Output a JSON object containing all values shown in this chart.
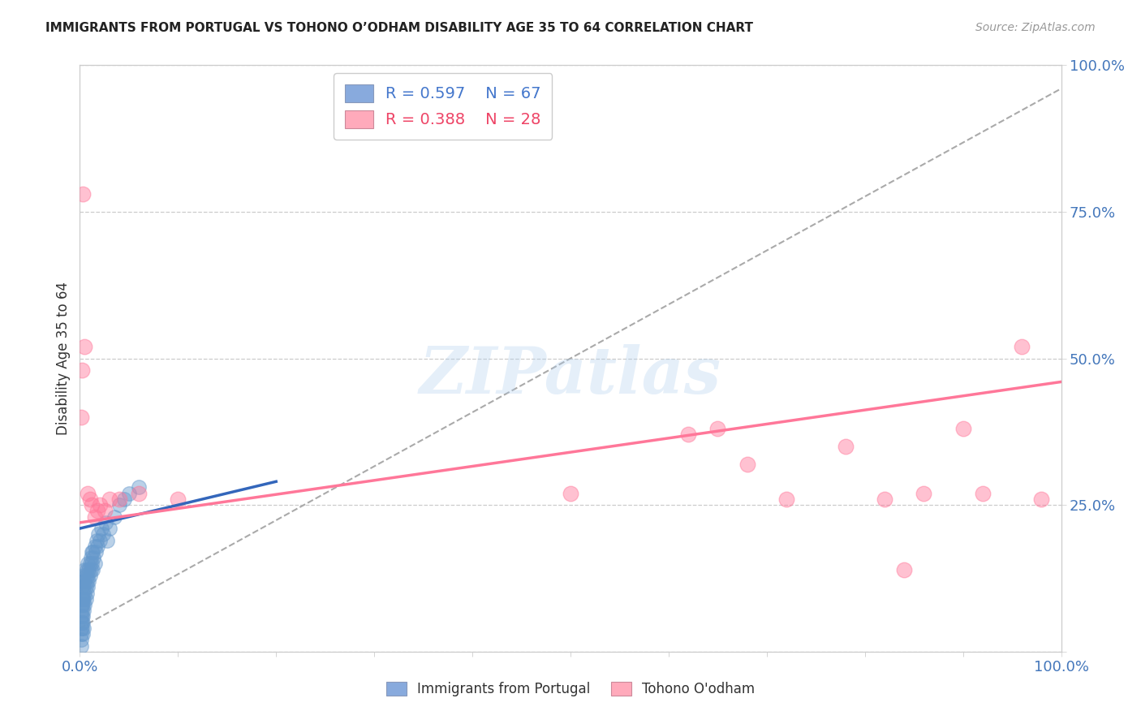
{
  "title": "IMMIGRANTS FROM PORTUGAL VS TOHONO O’ODHAM DISABILITY AGE 35 TO 64 CORRELATION CHART",
  "source": "Source: ZipAtlas.com",
  "ylabel": "Disability Age 35 to 64",
  "xlim": [
    0.0,
    1.0
  ],
  "ylim": [
    0.0,
    1.0
  ],
  "xticks": [
    0.0,
    1.0
  ],
  "xtick_labels": [
    "0.0%",
    "100.0%"
  ],
  "yticks": [
    0.0,
    0.25,
    0.5,
    0.75,
    1.0
  ],
  "ytick_labels": [
    "",
    "25.0%",
    "50.0%",
    "75.0%",
    "100.0%"
  ],
  "watermark": "ZIPatlas",
  "legend_r1": "R = 0.597",
  "legend_n1": "N = 67",
  "legend_r2": "R = 0.388",
  "legend_n2": "N = 28",
  "blue_color": "#6699cc",
  "pink_color": "#ff7799",
  "legend_blue_color": "#88aadd",
  "legend_pink_color": "#ffaabb",
  "blue_scatter": [
    [
      0.001,
      0.04
    ],
    [
      0.001,
      0.06
    ],
    [
      0.001,
      0.08
    ],
    [
      0.002,
      0.05
    ],
    [
      0.002,
      0.07
    ],
    [
      0.002,
      0.09
    ],
    [
      0.002,
      0.11
    ],
    [
      0.003,
      0.06
    ],
    [
      0.003,
      0.08
    ],
    [
      0.003,
      0.1
    ],
    [
      0.003,
      0.12
    ],
    [
      0.004,
      0.07
    ],
    [
      0.004,
      0.09
    ],
    [
      0.004,
      0.11
    ],
    [
      0.004,
      0.13
    ],
    [
      0.005,
      0.08
    ],
    [
      0.005,
      0.1
    ],
    [
      0.005,
      0.12
    ],
    [
      0.005,
      0.14
    ],
    [
      0.006,
      0.09
    ],
    [
      0.006,
      0.11
    ],
    [
      0.006,
      0.13
    ],
    [
      0.007,
      0.1
    ],
    [
      0.007,
      0.12
    ],
    [
      0.007,
      0.14
    ],
    [
      0.008,
      0.11
    ],
    [
      0.008,
      0.13
    ],
    [
      0.008,
      0.15
    ],
    [
      0.009,
      0.12
    ],
    [
      0.009,
      0.14
    ],
    [
      0.01,
      0.13
    ],
    [
      0.01,
      0.15
    ],
    [
      0.011,
      0.14
    ],
    [
      0.011,
      0.16
    ],
    [
      0.012,
      0.15
    ],
    [
      0.012,
      0.17
    ],
    [
      0.013,
      0.14
    ],
    [
      0.013,
      0.17
    ],
    [
      0.014,
      0.16
    ],
    [
      0.015,
      0.15
    ],
    [
      0.015,
      0.18
    ],
    [
      0.016,
      0.17
    ],
    [
      0.017,
      0.19
    ],
    [
      0.018,
      0.18
    ],
    [
      0.019,
      0.2
    ],
    [
      0.02,
      0.19
    ],
    [
      0.022,
      0.21
    ],
    [
      0.024,
      0.2
    ],
    [
      0.026,
      0.22
    ],
    [
      0.028,
      0.19
    ],
    [
      0.03,
      0.21
    ],
    [
      0.035,
      0.23
    ],
    [
      0.04,
      0.25
    ],
    [
      0.045,
      0.26
    ],
    [
      0.05,
      0.27
    ],
    [
      0.06,
      0.28
    ],
    [
      0.001,
      0.02
    ],
    [
      0.001,
      0.03
    ],
    [
      0.002,
      0.04
    ],
    [
      0.003,
      0.03
    ],
    [
      0.003,
      0.05
    ],
    [
      0.004,
      0.04
    ],
    [
      0.002,
      0.06
    ],
    [
      0.001,
      0.01
    ],
    [
      0.001,
      0.05
    ],
    [
      0.002,
      0.08
    ],
    [
      0.003,
      0.09
    ]
  ],
  "pink_scatter": [
    [
      0.001,
      0.4
    ],
    [
      0.002,
      0.48
    ],
    [
      0.003,
      0.78
    ],
    [
      0.005,
      0.52
    ],
    [
      0.008,
      0.27
    ],
    [
      0.01,
      0.26
    ],
    [
      0.012,
      0.25
    ],
    [
      0.015,
      0.23
    ],
    [
      0.018,
      0.24
    ],
    [
      0.02,
      0.25
    ],
    [
      0.025,
      0.24
    ],
    [
      0.03,
      0.26
    ],
    [
      0.04,
      0.26
    ],
    [
      0.06,
      0.27
    ],
    [
      0.1,
      0.26
    ],
    [
      0.5,
      0.27
    ],
    [
      0.62,
      0.37
    ],
    [
      0.65,
      0.38
    ],
    [
      0.68,
      0.32
    ],
    [
      0.72,
      0.26
    ],
    [
      0.78,
      0.35
    ],
    [
      0.82,
      0.26
    ],
    [
      0.84,
      0.14
    ],
    [
      0.86,
      0.27
    ],
    [
      0.9,
      0.38
    ],
    [
      0.92,
      0.27
    ],
    [
      0.96,
      0.52
    ],
    [
      0.98,
      0.26
    ]
  ],
  "gray_line_x": [
    0.0,
    1.0
  ],
  "gray_line_y": [
    0.04,
    0.96
  ],
  "blue_line_x": [
    0.0,
    0.2
  ],
  "blue_line_y": [
    0.21,
    0.29
  ],
  "pink_line_x": [
    0.0,
    1.0
  ],
  "pink_line_y": [
    0.22,
    0.46
  ],
  "title_fontsize": 11,
  "axis_tick_color": "#4477bb",
  "grid_color": "#cccccc",
  "background_color": "#ffffff"
}
